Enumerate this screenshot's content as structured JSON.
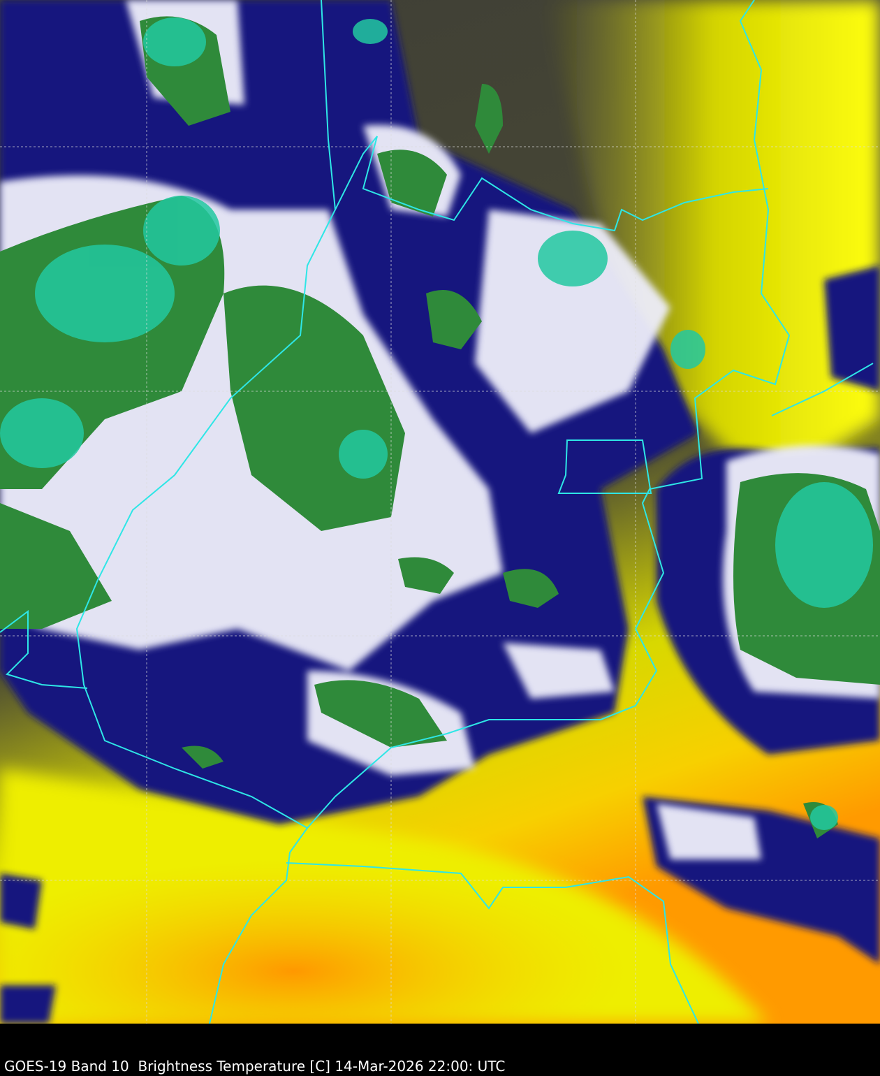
{
  "caption": "GOES-19 Band 10  Brightness Temperature [C] 14-Mar-2026 22:00: UTC",
  "colors": {
    "border": "#2ee6e6",
    "grid": "#dddddd",
    "warm_yellow": "#f2f200",
    "warm_orange": "#ffa500",
    "mid_olive": "#4a4a3a",
    "cold_navy": "#10107a",
    "colder_white": "#f4f4ff",
    "coldest_green": "#2f8a3a",
    "coldest_teal": "#20c8a0"
  }
}
